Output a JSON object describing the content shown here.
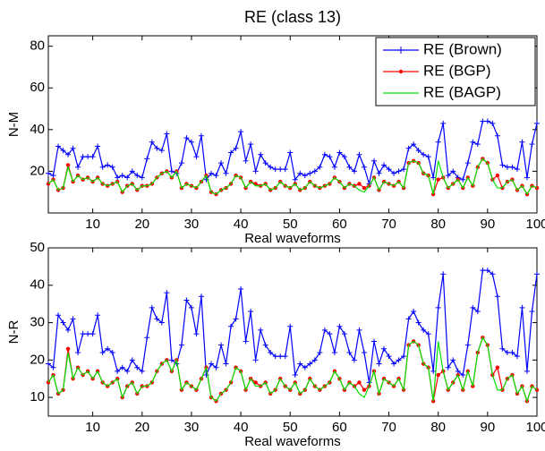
{
  "chart_data": [
    {
      "type": "line",
      "title": "RE (class 13)",
      "xlabel": "Real waveforms",
      "ylabel": "N-M",
      "x": [
        1,
        2,
        3,
        4,
        5,
        6,
        7,
        8,
        9,
        10,
        11,
        12,
        13,
        14,
        15,
        16,
        17,
        18,
        19,
        20,
        21,
        22,
        23,
        24,
        25,
        26,
        27,
        28,
        29,
        30,
        31,
        32,
        33,
        34,
        35,
        36,
        37,
        38,
        39,
        40,
        41,
        42,
        43,
        44,
        45,
        46,
        47,
        48,
        49,
        50,
        51,
        52,
        53,
        54,
        55,
        56,
        57,
        58,
        59,
        60,
        61,
        62,
        63,
        64,
        65,
        66,
        67,
        68,
        69,
        70,
        71,
        72,
        73,
        74,
        75,
        76,
        77,
        78,
        79,
        80,
        81,
        82,
        83,
        84,
        85,
        86,
        87,
        88,
        89,
        90,
        91,
        92,
        93,
        94,
        95,
        96,
        97,
        98,
        99,
        100
      ],
      "xlim": [
        1,
        100
      ],
      "xticks": [
        10,
        20,
        30,
        40,
        50,
        60,
        70,
        80,
        90,
        100
      ],
      "ylim": [
        0,
        85
      ],
      "yticks": [
        20,
        40,
        60,
        80
      ],
      "legend": "upper right",
      "series": [
        {
          "name": "RE (Brown)",
          "color": "#0000ff",
          "marker": "+",
          "values": [
            19,
            18,
            32,
            30,
            28,
            31,
            22,
            27,
            27,
            27,
            32,
            22,
            23,
            22,
            17,
            18,
            17,
            20,
            18,
            17,
            26,
            34,
            31,
            30,
            38,
            20,
            19,
            24,
            36,
            34,
            27,
            37,
            16,
            19,
            18,
            24,
            19,
            29,
            31,
            39,
            25,
            33,
            20,
            28,
            24,
            22,
            21,
            21,
            21,
            29,
            16,
            19,
            18,
            19,
            20,
            22,
            28,
            27,
            22,
            29,
            27,
            22,
            20,
            28,
            22,
            14,
            25,
            19,
            23,
            21,
            19,
            20,
            21,
            31,
            33,
            30,
            28,
            27,
            17,
            34,
            43,
            18,
            20,
            17,
            16,
            24,
            34,
            33,
            44,
            44,
            43,
            37,
            23,
            22,
            22,
            21,
            34,
            17,
            33,
            43
          ]
        },
        {
          "name": "RE (BGP)",
          "color": "#ff0000",
          "marker": "dot",
          "values": [
            14,
            16,
            11,
            12,
            23,
            15,
            18,
            16,
            17,
            15,
            17,
            14,
            13,
            14,
            15,
            10,
            13,
            14,
            11,
            13,
            13,
            14,
            17,
            19,
            20,
            17,
            20,
            12,
            14,
            13,
            12,
            15,
            18,
            10,
            9,
            11,
            12,
            14,
            18,
            17,
            12,
            15,
            14,
            13,
            14,
            11,
            12,
            15,
            13,
            12,
            14,
            11,
            12,
            15,
            13,
            12,
            13,
            14,
            17,
            15,
            12,
            14,
            13,
            14,
            12,
            13,
            17,
            11,
            15,
            14,
            13,
            15,
            12,
            24,
            25,
            24,
            19,
            18,
            9,
            16,
            17,
            12,
            14,
            16,
            12,
            17,
            13,
            22,
            26,
            24,
            16,
            18,
            12,
            15,
            16,
            11,
            13,
            9,
            13,
            12
          ]
        },
        {
          "name": "RE (BAGP)",
          "color": "#00e000",
          "marker": null,
          "values": [
            14,
            16,
            11,
            12,
            22,
            15,
            18,
            16,
            17,
            15,
            17,
            14,
            13,
            14,
            15,
            10,
            13,
            14,
            11,
            13,
            13,
            14,
            17,
            19,
            20,
            17,
            20,
            12,
            14,
            13,
            12,
            15,
            18,
            10,
            9,
            11,
            12,
            14,
            18,
            17,
            12,
            15,
            13,
            13,
            14,
            11,
            12,
            15,
            13,
            12,
            14,
            11,
            12,
            15,
            13,
            12,
            13,
            14,
            17,
            15,
            12,
            14,
            13,
            11,
            10,
            13,
            17,
            11,
            15,
            14,
            13,
            15,
            12,
            24,
            25,
            24,
            19,
            18,
            9,
            25,
            17,
            12,
            14,
            16,
            12,
            17,
            13,
            22,
            26,
            24,
            16,
            12,
            12,
            15,
            16,
            11,
            13,
            9,
            13,
            12
          ]
        }
      ]
    },
    {
      "type": "line",
      "xlabel": "Real waveforms",
      "ylabel": "N-R",
      "x": [
        1,
        2,
        3,
        4,
        5,
        6,
        7,
        8,
        9,
        10,
        11,
        12,
        13,
        14,
        15,
        16,
        17,
        18,
        19,
        20,
        21,
        22,
        23,
        24,
        25,
        26,
        27,
        28,
        29,
        30,
        31,
        32,
        33,
        34,
        35,
        36,
        37,
        38,
        39,
        40,
        41,
        42,
        43,
        44,
        45,
        46,
        47,
        48,
        49,
        50,
        51,
        52,
        53,
        54,
        55,
        56,
        57,
        58,
        59,
        60,
        61,
        62,
        63,
        64,
        65,
        66,
        67,
        68,
        69,
        70,
        71,
        72,
        73,
        74,
        75,
        76,
        77,
        78,
        79,
        80,
        81,
        82,
        83,
        84,
        85,
        86,
        87,
        88,
        89,
        90,
        91,
        92,
        93,
        94,
        95,
        96,
        97,
        98,
        99,
        100
      ],
      "xlim": [
        1,
        100
      ],
      "xticks": [
        10,
        20,
        30,
        40,
        50,
        60,
        70,
        80,
        90,
        100
      ],
      "ylim": [
        5,
        50
      ],
      "yticks": [
        10,
        20,
        30,
        40,
        50
      ],
      "series": [
        {
          "color": "#0000ff",
          "marker": "+",
          "values": [
            19,
            18,
            32,
            30,
            28,
            31,
            22,
            27,
            27,
            27,
            32,
            22,
            23,
            22,
            17,
            18,
            17,
            20,
            18,
            17,
            26,
            34,
            31,
            30,
            38,
            20,
            19,
            24,
            36,
            34,
            27,
            37,
            16,
            19,
            18,
            24,
            19,
            29,
            31,
            39,
            25,
            33,
            20,
            28,
            24,
            22,
            21,
            21,
            21,
            29,
            16,
            19,
            18,
            19,
            20,
            22,
            28,
            27,
            22,
            29,
            27,
            22,
            20,
            28,
            22,
            14,
            25,
            19,
            23,
            21,
            19,
            20,
            21,
            31,
            33,
            30,
            28,
            27,
            17,
            34,
            43,
            18,
            20,
            17,
            16,
            24,
            34,
            33,
            44,
            44,
            43,
            37,
            23,
            22,
            22,
            21,
            34,
            17,
            33,
            43
          ]
        },
        {
          "color": "#ff0000",
          "marker": "dot",
          "values": [
            14,
            16,
            11,
            12,
            23,
            15,
            18,
            16,
            17,
            15,
            17,
            14,
            13,
            14,
            15,
            10,
            13,
            14,
            11,
            13,
            13,
            14,
            17,
            19,
            20,
            17,
            20,
            12,
            14,
            13,
            12,
            15,
            18,
            10,
            9,
            11,
            12,
            14,
            18,
            17,
            12,
            15,
            14,
            13,
            14,
            11,
            12,
            15,
            13,
            12,
            14,
            11,
            12,
            15,
            13,
            12,
            13,
            14,
            17,
            15,
            12,
            14,
            13,
            14,
            12,
            13,
            17,
            11,
            15,
            14,
            13,
            15,
            12,
            24,
            25,
            24,
            19,
            18,
            9,
            16,
            17,
            12,
            14,
            16,
            12,
            17,
            13,
            22,
            26,
            24,
            16,
            18,
            12,
            15,
            16,
            11,
            13,
            9,
            13,
            12
          ]
        },
        {
          "color": "#00e000",
          "marker": null,
          "values": [
            14,
            16,
            11,
            12,
            22,
            15,
            18,
            16,
            17,
            15,
            17,
            14,
            13,
            14,
            15,
            10,
            13,
            14,
            11,
            13,
            13,
            14,
            17,
            19,
            20,
            17,
            20,
            12,
            14,
            13,
            12,
            15,
            18,
            10,
            9,
            11,
            12,
            14,
            18,
            17,
            12,
            15,
            13,
            13,
            14,
            11,
            12,
            15,
            13,
            12,
            14,
            11,
            12,
            15,
            13,
            12,
            13,
            14,
            17,
            15,
            12,
            14,
            13,
            11,
            10,
            13,
            17,
            11,
            15,
            14,
            13,
            15,
            12,
            24,
            25,
            24,
            19,
            18,
            9,
            25,
            17,
            12,
            14,
            16,
            12,
            17,
            13,
            22,
            26,
            24,
            16,
            12,
            12,
            15,
            16,
            11,
            13,
            9,
            13,
            12
          ]
        }
      ]
    }
  ]
}
